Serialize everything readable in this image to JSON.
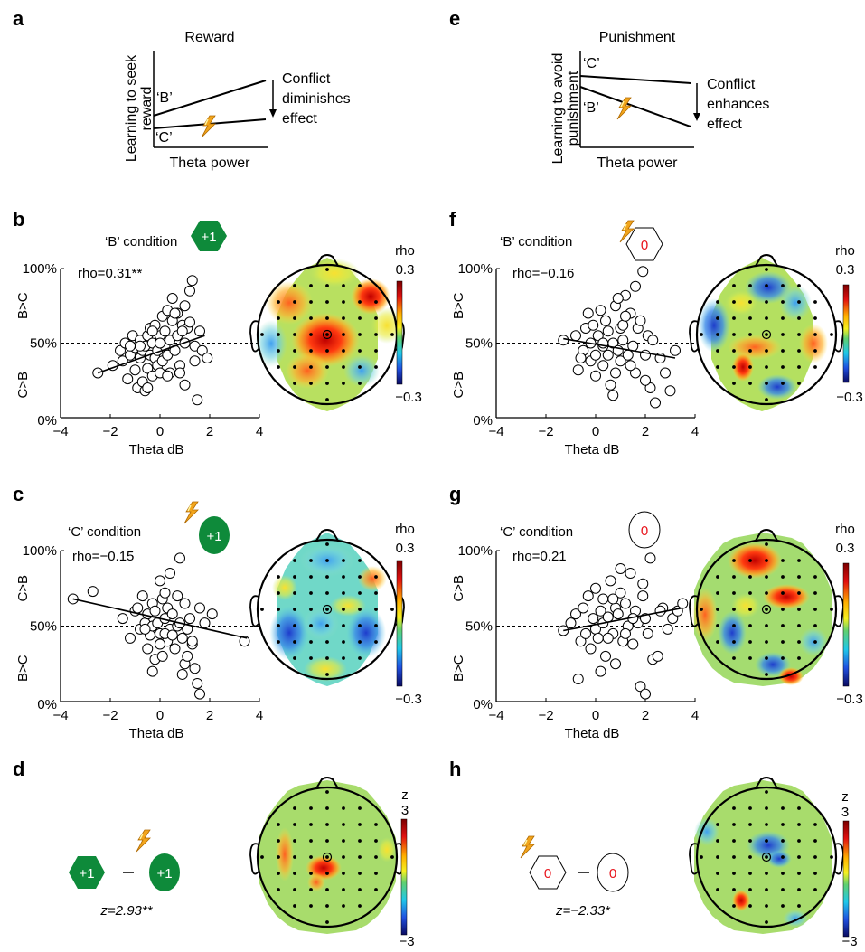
{
  "panel_letters": [
    "a",
    "b",
    "c",
    "d",
    "e",
    "f",
    "g",
    "h"
  ],
  "schematics": {
    "a": {
      "title": "Reward",
      "ylabel_line1": "Learning to seek",
      "ylabel_line2": "reward",
      "xlabel": "Theta power",
      "line_b": "‘B’",
      "line_c": "‘C’",
      "note_line1": "Conflict",
      "note_line2": "diminishes",
      "note_line3": "effect"
    },
    "e": {
      "title": "Punishment",
      "ylabel_line1": "Learning to avoid",
      "ylabel_line2": "punishment",
      "xlabel": "Theta power",
      "line_b": "‘B’",
      "line_c": "‘C’",
      "note_line1": "Conflict",
      "note_line2": "enhances",
      "note_line3": "effect"
    }
  },
  "colors": {
    "green": "#0e8a3a",
    "red": "#e8141c",
    "black": "#000000",
    "lightning": "#f2a51c"
  },
  "icons": {
    "plus_one": "+1",
    "zero": "0"
  },
  "topo_common": {
    "colorbar_label": "rho",
    "cmax": "0.3",
    "cmin": "−0.3"
  },
  "diff": {
    "d": {
      "z_text": "z=2.93**",
      "cb_label": "z",
      "cb_max": "3",
      "cb_min": "−3"
    },
    "h": {
      "z_text": "z=−2.33*",
      "cb_label": "z",
      "cb_max": "3",
      "cb_min": "−3"
    }
  },
  "chart_data": [
    {
      "panel": "b",
      "type": "scatter",
      "title": "‘B’ condition",
      "annotation": "rho=0.31**",
      "xlabel": "Theta dB",
      "ylabel_top": "B>C",
      "ylabel_bottom": "C>B",
      "xlim": [
        -4,
        4
      ],
      "ylim": [
        0,
        100
      ],
      "xticks": [
        "−4",
        "−2",
        "0",
        "2",
        "4"
      ],
      "yticks": [
        "0%",
        "50%",
        "100%"
      ],
      "fit": [
        [
          -2.5,
          30
        ],
        [
          1.8,
          55
        ]
      ],
      "x": [
        -2.5,
        -1.9,
        -1.6,
        -1.5,
        -1.4,
        -1.3,
        -1.2,
        -1.1,
        -1.0,
        -1.0,
        -0.9,
        -0.8,
        -0.8,
        -0.7,
        -0.7,
        -0.6,
        -0.6,
        -0.5,
        -0.5,
        -0.4,
        -0.4,
        -0.3,
        -0.3,
        -0.2,
        -0.2,
        -0.1,
        -0.1,
        0.0,
        0.0,
        0.1,
        0.1,
        0.2,
        0.2,
        0.3,
        0.3,
        0.4,
        0.4,
        0.5,
        0.5,
        0.6,
        0.7,
        0.7,
        0.8,
        0.9,
        1.0,
        1.0,
        1.1,
        1.2,
        1.3,
        1.4,
        1.5,
        1.6,
        1.7,
        1.9,
        -0.5,
        0.3,
        1.4,
        1.0,
        -1.2,
        -0.3,
        0.6,
        0.9,
        1.2,
        -0.8,
        0.0,
        0.8
      ],
      "y": [
        30,
        35,
        45,
        38,
        50,
        26,
        42,
        55,
        32,
        47,
        20,
        40,
        52,
        45,
        24,
        48,
        18,
        55,
        33,
        42,
        60,
        28,
        50,
        40,
        62,
        35,
        45,
        30,
        55,
        68,
        38,
        48,
        58,
        72,
        42,
        52,
        30,
        65,
        80,
        45,
        55,
        70,
        35,
        62,
        75,
        50,
        60,
        85,
        92,
        48,
        12,
        58,
        45,
        40,
        20,
        28,
        38,
        22,
        48,
        58,
        70,
        58,
        64,
        48,
        50,
        30
      ]
    },
    {
      "panel": "c",
      "type": "scatter",
      "title": "‘C’ condition",
      "annotation": "rho=−0.15",
      "xlabel": "Theta dB",
      "ylabel_top": "C>B",
      "ylabel_bottom": "B>C",
      "xlim": [
        -4,
        4
      ],
      "ylim": [
        0,
        100
      ],
      "xticks": [
        "−4",
        "−2",
        "0",
        "2",
        "4"
      ],
      "yticks": [
        "0%",
        "50%",
        "100%"
      ],
      "fit": [
        [
          -3.5,
          68
        ],
        [
          3.5,
          42
        ]
      ],
      "x": [
        -3.5,
        -2.7,
        -1.5,
        -1.2,
        -1.0,
        -0.8,
        -0.7,
        -0.6,
        -0.5,
        -0.5,
        -0.4,
        -0.3,
        -0.3,
        -0.2,
        -0.2,
        -0.1,
        0.0,
        0.0,
        0.1,
        0.1,
        0.2,
        0.2,
        0.3,
        0.3,
        0.4,
        0.4,
        0.5,
        0.6,
        0.7,
        0.8,
        0.9,
        1.0,
        1.0,
        1.1,
        1.2,
        1.3,
        1.4,
        1.5,
        1.6,
        1.8,
        2.1,
        3.4,
        -0.9,
        0.2,
        0.7,
        1.1,
        -0.3,
        0.5,
        0.9,
        1.3,
        -0.6,
        0.0,
        1.6,
        0.8
      ],
      "y": [
        68,
        73,
        55,
        42,
        60,
        48,
        70,
        52,
        35,
        58,
        44,
        65,
        50,
        28,
        60,
        52,
        80,
        45,
        68,
        30,
        55,
        72,
        40,
        62,
        48,
        85,
        58,
        35,
        50,
        95,
        42,
        65,
        25,
        48,
        55,
        38,
        22,
        12,
        5,
        52,
        58,
        40,
        62,
        45,
        70,
        30,
        20,
        44,
        18,
        40,
        48,
        38,
        62,
        52
      ]
    },
    {
      "panel": "f",
      "type": "scatter",
      "title": "‘B’ condition",
      "annotation": "rho=−0.16",
      "xlabel": "Theta dB",
      "ylabel_top": "B>C",
      "ylabel_bottom": "C>B",
      "xlim": [
        -4,
        4
      ],
      "ylim": [
        0,
        100
      ],
      "xticks": [
        "−4",
        "−2",
        "0",
        "2",
        "4"
      ],
      "yticks": [
        "0%",
        "50%",
        "100%"
      ],
      "fit": [
        [
          -1.3,
          53
        ],
        [
          3.2,
          40
        ]
      ],
      "x": [
        -1.3,
        -0.8,
        -0.7,
        -0.5,
        -0.4,
        -0.3,
        -0.2,
        -0.2,
        -0.1,
        0.0,
        0.0,
        0.1,
        0.2,
        0.3,
        0.3,
        0.4,
        0.5,
        0.5,
        0.6,
        0.7,
        0.8,
        0.8,
        0.9,
        1.0,
        1.0,
        1.1,
        1.2,
        1.3,
        1.4,
        1.5,
        1.6,
        1.7,
        1.8,
        1.9,
        2.0,
        2.1,
        2.2,
        2.4,
        2.6,
        2.8,
        3.0,
        3.2,
        1.6,
        0.3,
        2.0,
        0.9,
        1.4,
        0.7,
        1.1,
        -0.6,
        2.3,
        1.2
      ],
      "y": [
        52,
        55,
        32,
        45,
        60,
        70,
        38,
        50,
        62,
        28,
        42,
        55,
        72,
        48,
        35,
        65,
        58,
        42,
        22,
        50,
        75,
        30,
        45,
        60,
        38,
        52,
        82,
        42,
        70,
        48,
        30,
        60,
        65,
        98,
        42,
        55,
        20,
        10,
        40,
        30,
        18,
        45,
        88,
        50,
        25,
        80,
        35,
        15,
        62,
        40,
        52,
        68
      ]
    },
    {
      "panel": "g",
      "type": "scatter",
      "title": "‘C’ condition",
      "annotation": "rho=0.21",
      "xlabel": "Theta dB",
      "ylabel_top": "C>B",
      "ylabel_bottom": "B>C",
      "xlim": [
        -4,
        4
      ],
      "ylim": [
        0,
        100
      ],
      "xticks": [
        "−4",
        "−2",
        "0",
        "2",
        "4"
      ],
      "yticks": [
        "0%",
        "50%",
        "100%"
      ],
      "fit": [
        [
          -1.3,
          47
        ],
        [
          3.5,
          62
        ]
      ],
      "x": [
        -1.3,
        -1.0,
        -0.8,
        -0.6,
        -0.5,
        -0.4,
        -0.3,
        -0.2,
        -0.1,
        0.0,
        0.0,
        0.1,
        0.2,
        0.3,
        0.3,
        0.4,
        0.5,
        0.6,
        0.7,
        0.8,
        0.8,
        0.9,
        1.0,
        1.1,
        1.2,
        1.3,
        1.4,
        1.5,
        1.6,
        1.7,
        1.8,
        1.9,
        2.0,
        2.1,
        2.2,
        2.3,
        2.5,
        2.7,
        2.9,
        3.1,
        3.3,
        3.5,
        0.5,
        1.0,
        1.5,
        0.2,
        2.0,
        -0.7,
        1.2,
        0.7,
        2.6,
        1.9
      ],
      "y": [
        47,
        52,
        58,
        40,
        62,
        45,
        70,
        35,
        55,
        48,
        75,
        42,
        60,
        52,
        68,
        30,
        56,
        80,
        45,
        62,
        25,
        58,
        72,
        40,
        65,
        50,
        85,
        38,
        60,
        52,
        10,
        70,
        55,
        45,
        95,
        28,
        30,
        62,
        48,
        55,
        60,
        65,
        42,
        88,
        55,
        20,
        5,
        15,
        45,
        68,
        60,
        78
      ]
    }
  ]
}
